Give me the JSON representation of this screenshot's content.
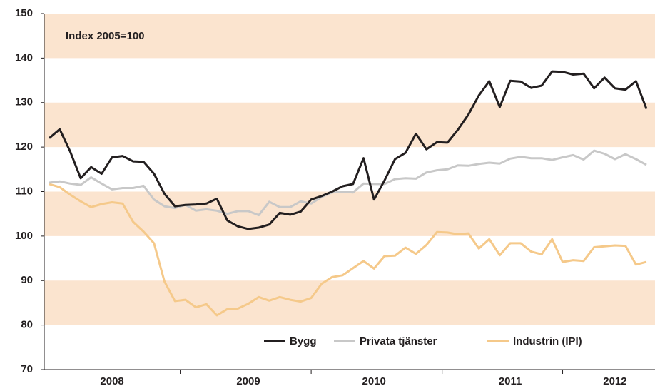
{
  "chart_data": {
    "type": "line",
    "annotation": "Index 2005=100",
    "categories": [
      null,
      null,
      null,
      null,
      null,
      null,
      "2008",
      null,
      null,
      null,
      null,
      null,
      null,
      null,
      null,
      null,
      null,
      null,
      null,
      "2009",
      null,
      null,
      null,
      null,
      null,
      null,
      null,
      null,
      null,
      null,
      null,
      "2010",
      null,
      null,
      null,
      null,
      null,
      null,
      null,
      null,
      null,
      null,
      null,
      null,
      "2011",
      null,
      null,
      null,
      null,
      null,
      null,
      null,
      null,
      null,
      "2012",
      null,
      null,
      null
    ],
    "series": [
      {
        "name": "Bygg",
        "color": "#231f20",
        "values": [
          122,
          124,
          119,
          113,
          115.5,
          114,
          117.7,
          118,
          116.8,
          116.7,
          114,
          109.5,
          106.7,
          107,
          107.1,
          107.3,
          108.4,
          103.5,
          102.2,
          101.6,
          101.9,
          102.6,
          105.2,
          104.8,
          105.5,
          108.2,
          109,
          110,
          111.2,
          111.7,
          117.5,
          108.2,
          112.5,
          117.3,
          118.7,
          123,
          119.5,
          121.1,
          121,
          123.9,
          127.3,
          131.6,
          134.8,
          129,
          134.9,
          134.7,
          133.3,
          133.8,
          137,
          136.9,
          136.3,
          136.5,
          133.2,
          135.6,
          133.2,
          132.9,
          134.8,
          128.6
        ]
      },
      {
        "name": "Privata tjänster",
        "color": "#c8c8c8",
        "values": [
          112,
          112.3,
          111.8,
          111.5,
          113.2,
          111.8,
          110.5,
          110.8,
          110.8,
          111.3,
          108.2,
          106.7,
          106.3,
          107,
          105.7,
          106,
          105.7,
          105,
          105.6,
          105.6,
          104.7,
          107.7,
          106.5,
          106.5,
          107.8,
          107.3,
          108.8,
          109.8,
          110,
          109.8,
          111.8,
          111.7,
          111.7,
          112.8,
          113,
          112.9,
          114.3,
          114.8,
          115,
          115.9,
          115.8,
          116.2,
          116.5,
          116.3,
          117.4,
          117.8,
          117.5,
          117.5,
          117.1,
          117.7,
          118.2,
          117.2,
          119.2,
          118.5,
          117.3,
          118.4,
          117.3,
          116
        ]
      },
      {
        "name": "Industrin (IPI)",
        "color": "#f5c98a",
        "values": [
          111.7,
          111,
          109.3,
          107.8,
          106.5,
          107.2,
          107.6,
          107.3,
          103.2,
          101,
          98.4,
          89.8,
          85.4,
          85.7,
          84,
          84.7,
          82.2,
          83.6,
          83.7,
          84.8,
          86.3,
          85.5,
          86.3,
          85.7,
          85.3,
          86.1,
          89.3,
          90.8,
          91.2,
          92.8,
          94.4,
          92.7,
          95.5,
          95.6,
          97.4,
          96,
          98,
          100.9,
          100.8,
          100.4,
          100.6,
          97.2,
          99.3,
          95.7,
          98.4,
          98.4,
          96.5,
          95.9,
          99.3,
          94.2,
          94.6,
          94.4,
          97.5,
          97.7,
          97.9,
          97.8,
          93.6,
          94.2
        ]
      }
    ],
    "ylim": [
      70,
      150
    ],
    "yticks": [
      70,
      80,
      90,
      100,
      110,
      120,
      130,
      140,
      150
    ],
    "bands": true,
    "band_color": "#fbe4cf",
    "legend": "bottom"
  }
}
